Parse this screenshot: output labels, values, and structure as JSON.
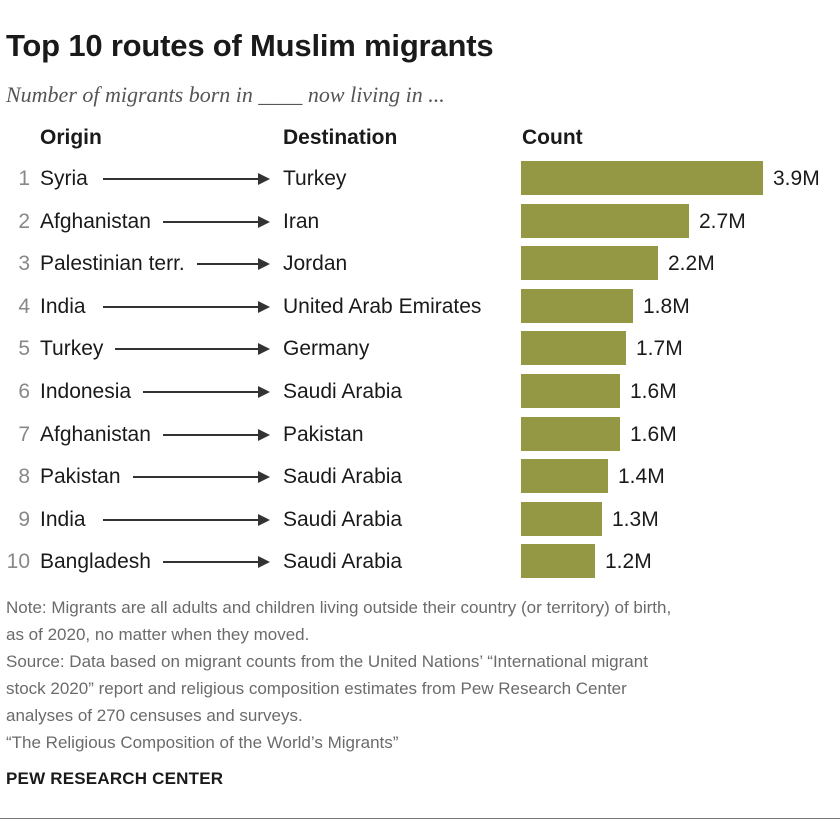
{
  "title": "Top 10 routes of Muslim migrants",
  "subtitle": "Number of migrants born in ____ now living in ...",
  "headers": {
    "origin": "Origin",
    "destination": "Destination",
    "count": "Count"
  },
  "notes": [
    "Note: Migrants are all adults and children living outside their country (or territory) of birth,",
    "as of 2020, no matter when they moved.",
    "Source: Data based on migrant counts from the United Nations’ “International migrant",
    "stock 2020” report and religious composition estimates from Pew Research Center",
    "analyses of 270 censuses and surveys.",
    "“The Religious Composition of the World’s Migrants”"
  ],
  "brand": "PEW RESEARCH CENTER",
  "colors": {
    "bar": "#949845",
    "text": "#1a1a1a",
    "muted": "#6b6b6b"
  },
  "chart_data": {
    "type": "bar",
    "orientation": "horizontal",
    "unit": "M",
    "rows": [
      {
        "rank": "1",
        "origin": "Syria",
        "destination": "Turkey",
        "value": 3.9,
        "label": "3.9M"
      },
      {
        "rank": "2",
        "origin": "Afghanistan",
        "destination": "Iran",
        "value": 2.7,
        "label": "2.7M"
      },
      {
        "rank": "3",
        "origin": "Palestinian terr.",
        "destination": "Jordan",
        "value": 2.2,
        "label": "2.2M"
      },
      {
        "rank": "4",
        "origin": "India",
        "destination": "United Arab Emirates",
        "value": 1.8,
        "label": "1.8M"
      },
      {
        "rank": "5",
        "origin": "Turkey",
        "destination": "Germany",
        "value": 1.7,
        "label": "1.7M"
      },
      {
        "rank": "6",
        "origin": "Indonesia",
        "destination": "Saudi Arabia",
        "value": 1.6,
        "label": "1.6M"
      },
      {
        "rank": "7",
        "origin": "Afghanistan",
        "destination": "Pakistan",
        "value": 1.6,
        "label": "1.6M"
      },
      {
        "rank": "8",
        "origin": "Pakistan",
        "destination": "Saudi Arabia",
        "value": 1.4,
        "label": "1.4M"
      },
      {
        "rank": "9",
        "origin": "India",
        "destination": "Saudi Arabia",
        "value": 1.3,
        "label": "1.3M"
      },
      {
        "rank": "10",
        "origin": "Bangladesh",
        "destination": "Saudi Arabia",
        "value": 1.2,
        "label": "1.2M"
      }
    ]
  }
}
